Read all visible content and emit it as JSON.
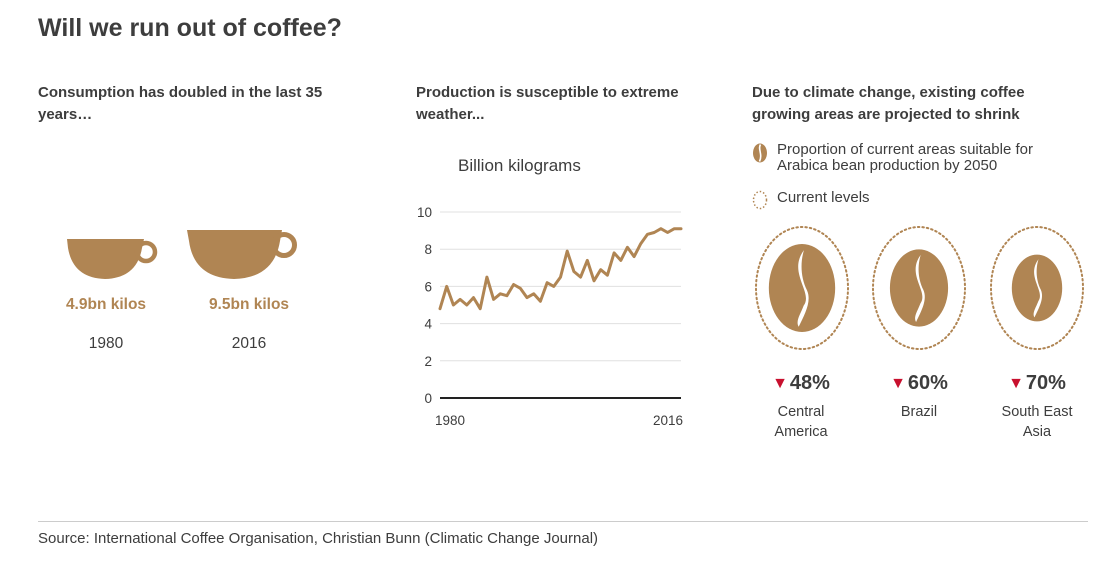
{
  "title": "Will we run out of coffee?",
  "colors": {
    "coffee": "#b08553",
    "down_arrow": "#c8102e",
    "text": "#3d3d3d",
    "grid": "#e0e0e0"
  },
  "panels": {
    "consumption": {
      "heading": "Consumption has doubled in the last 35 years…",
      "cups": [
        {
          "value": "4.9bn kilos",
          "year": "1980",
          "icon": "coffee-cup-icon"
        },
        {
          "value": "9.5bn kilos",
          "year": "2016",
          "icon": "coffee-cup-icon"
        }
      ]
    },
    "production": {
      "heading": "Production is susceptible to extreme weather...",
      "unit_label": "Billion kilograms"
    },
    "climate": {
      "heading": "Due to climate change, existing coffee growing areas are projected to shrink",
      "legend": {
        "bean_label": "Proportion of current areas suitable for Arabica bean production by 2050",
        "dotted_label": "Current levels"
      },
      "regions": [
        {
          "name_line1": "Central",
          "name_line2": "America",
          "change": "48%",
          "remaining_fraction": 0.52
        },
        {
          "name_line1": "Brazil",
          "name_line2": "",
          "change": "60%",
          "remaining_fraction": 0.4
        },
        {
          "name_line1": "South East",
          "name_line2": "Asia",
          "change": "70%",
          "remaining_fraction": 0.3
        }
      ],
      "down_arrow_symbol": "▼"
    }
  },
  "chart_data": {
    "type": "line",
    "title": "Production is susceptible to extreme weather...",
    "ylabel": "Billion kilograms",
    "xlabel": "",
    "ylim": [
      0,
      10
    ],
    "yticks": [
      "0",
      "2",
      "4",
      "6",
      "8",
      "10"
    ],
    "xtick_labels": [
      "1980",
      "2016"
    ],
    "grid": true,
    "x": [
      1980,
      1981,
      1982,
      1983,
      1984,
      1985,
      1986,
      1987,
      1988,
      1989,
      1990,
      1991,
      1992,
      1993,
      1994,
      1995,
      1996,
      1997,
      1998,
      1999,
      2000,
      2001,
      2002,
      2003,
      2004,
      2005,
      2006,
      2007,
      2008,
      2009,
      2010,
      2011,
      2012,
      2013,
      2014,
      2015,
      2016
    ],
    "series": [
      {
        "values": [
          4.8,
          6.0,
          5.0,
          5.3,
          5.0,
          5.4,
          4.8,
          6.5,
          5.3,
          5.6,
          5.5,
          6.1,
          5.9,
          5.4,
          5.6,
          5.2,
          6.2,
          6.0,
          6.5,
          7.9,
          6.8,
          6.5,
          7.4,
          6.3,
          6.9,
          6.6,
          7.8,
          7.4,
          8.1,
          7.6,
          8.3,
          8.8,
          8.9,
          9.1,
          8.9,
          9.1,
          9.1
        ]
      }
    ]
  },
  "source": "Source: International Coffee Organisation, Christian Bunn (Climatic Change Journal)"
}
